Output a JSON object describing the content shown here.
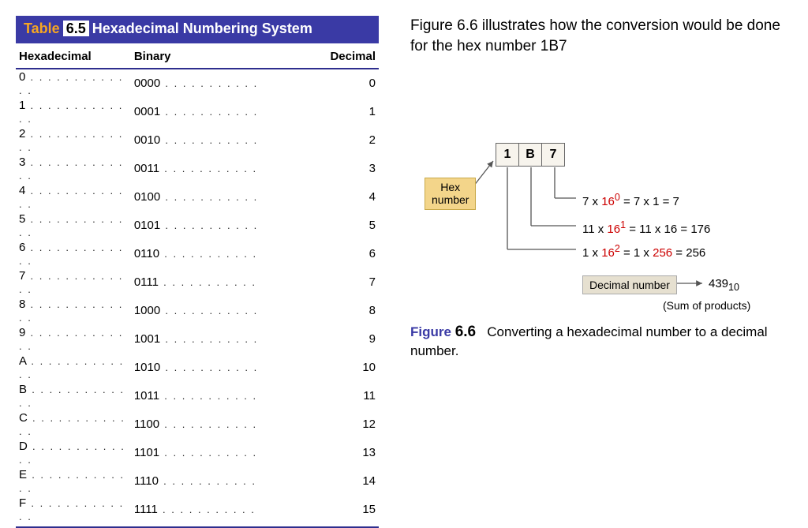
{
  "table": {
    "banner_word": "Table",
    "banner_num": "6.5",
    "banner_rest": "Hexadecimal Numbering System",
    "headers": [
      "Hexadecimal",
      "Binary",
      "Decimal"
    ],
    "rows": [
      {
        "h": "0",
        "b": "0000",
        "d": "0"
      },
      {
        "h": "1",
        "b": "0001",
        "d": "1"
      },
      {
        "h": "2",
        "b": "0010",
        "d": "2"
      },
      {
        "h": "3",
        "b": "0011",
        "d": "3"
      },
      {
        "h": "4",
        "b": "0100",
        "d": "4"
      },
      {
        "h": "5",
        "b": "0101",
        "d": "5"
      },
      {
        "h": "6",
        "b": "0110",
        "d": "6"
      },
      {
        "h": "7",
        "b": "0111",
        "d": "7"
      },
      {
        "h": "8",
        "b": "1000",
        "d": "8"
      },
      {
        "h": "9",
        "b": "1001",
        "d": "9"
      },
      {
        "h": "A",
        "b": "1010",
        "d": "10"
      },
      {
        "h": "B",
        "b": "1011",
        "d": "11"
      },
      {
        "h": "C",
        "b": "1100",
        "d": "12"
      },
      {
        "h": "D",
        "b": "1101",
        "d": "13"
      },
      {
        "h": "E",
        "b": "1110",
        "d": "14"
      },
      {
        "h": "F",
        "b": "1111",
        "d": "15"
      }
    ]
  },
  "intro": "Figure 6.6 illustrates how the conversion would be done for the hex number 1B7",
  "diagram": {
    "digits": [
      "1",
      "B",
      "7"
    ],
    "hex_label_l1": "Hex",
    "hex_label_l2": "number",
    "calc1_a": "7 x ",
    "calc1_b": "16",
    "calc1_sup": "0",
    "calc1_c": " =  7 x    1  =    7",
    "calc2_a": "11  x ",
    "calc2_b": "16",
    "calc2_sup": "1",
    "calc2_c": "  = 11  x   16  =  176",
    "calc3_a": "1 x ",
    "calc3_b": "16",
    "calc3_sup": "2",
    "calc3_c": "  =  1 x ",
    "calc3_d": "256",
    "calc3_e": " = 256",
    "dec_label": "Decimal number",
    "result": "439",
    "result_sub": "10",
    "sum_note": "(Sum of products)"
  },
  "caption": {
    "fword": "Figure",
    "fnum": "6.6",
    "text": "Converting a hexadecimal number to a decimal number."
  },
  "colors": {
    "banner_bg": "#3a3aa5",
    "banner_orange": "#f5a623",
    "hex_box_bg": "#f3d58a",
    "red": "#cc0000"
  }
}
